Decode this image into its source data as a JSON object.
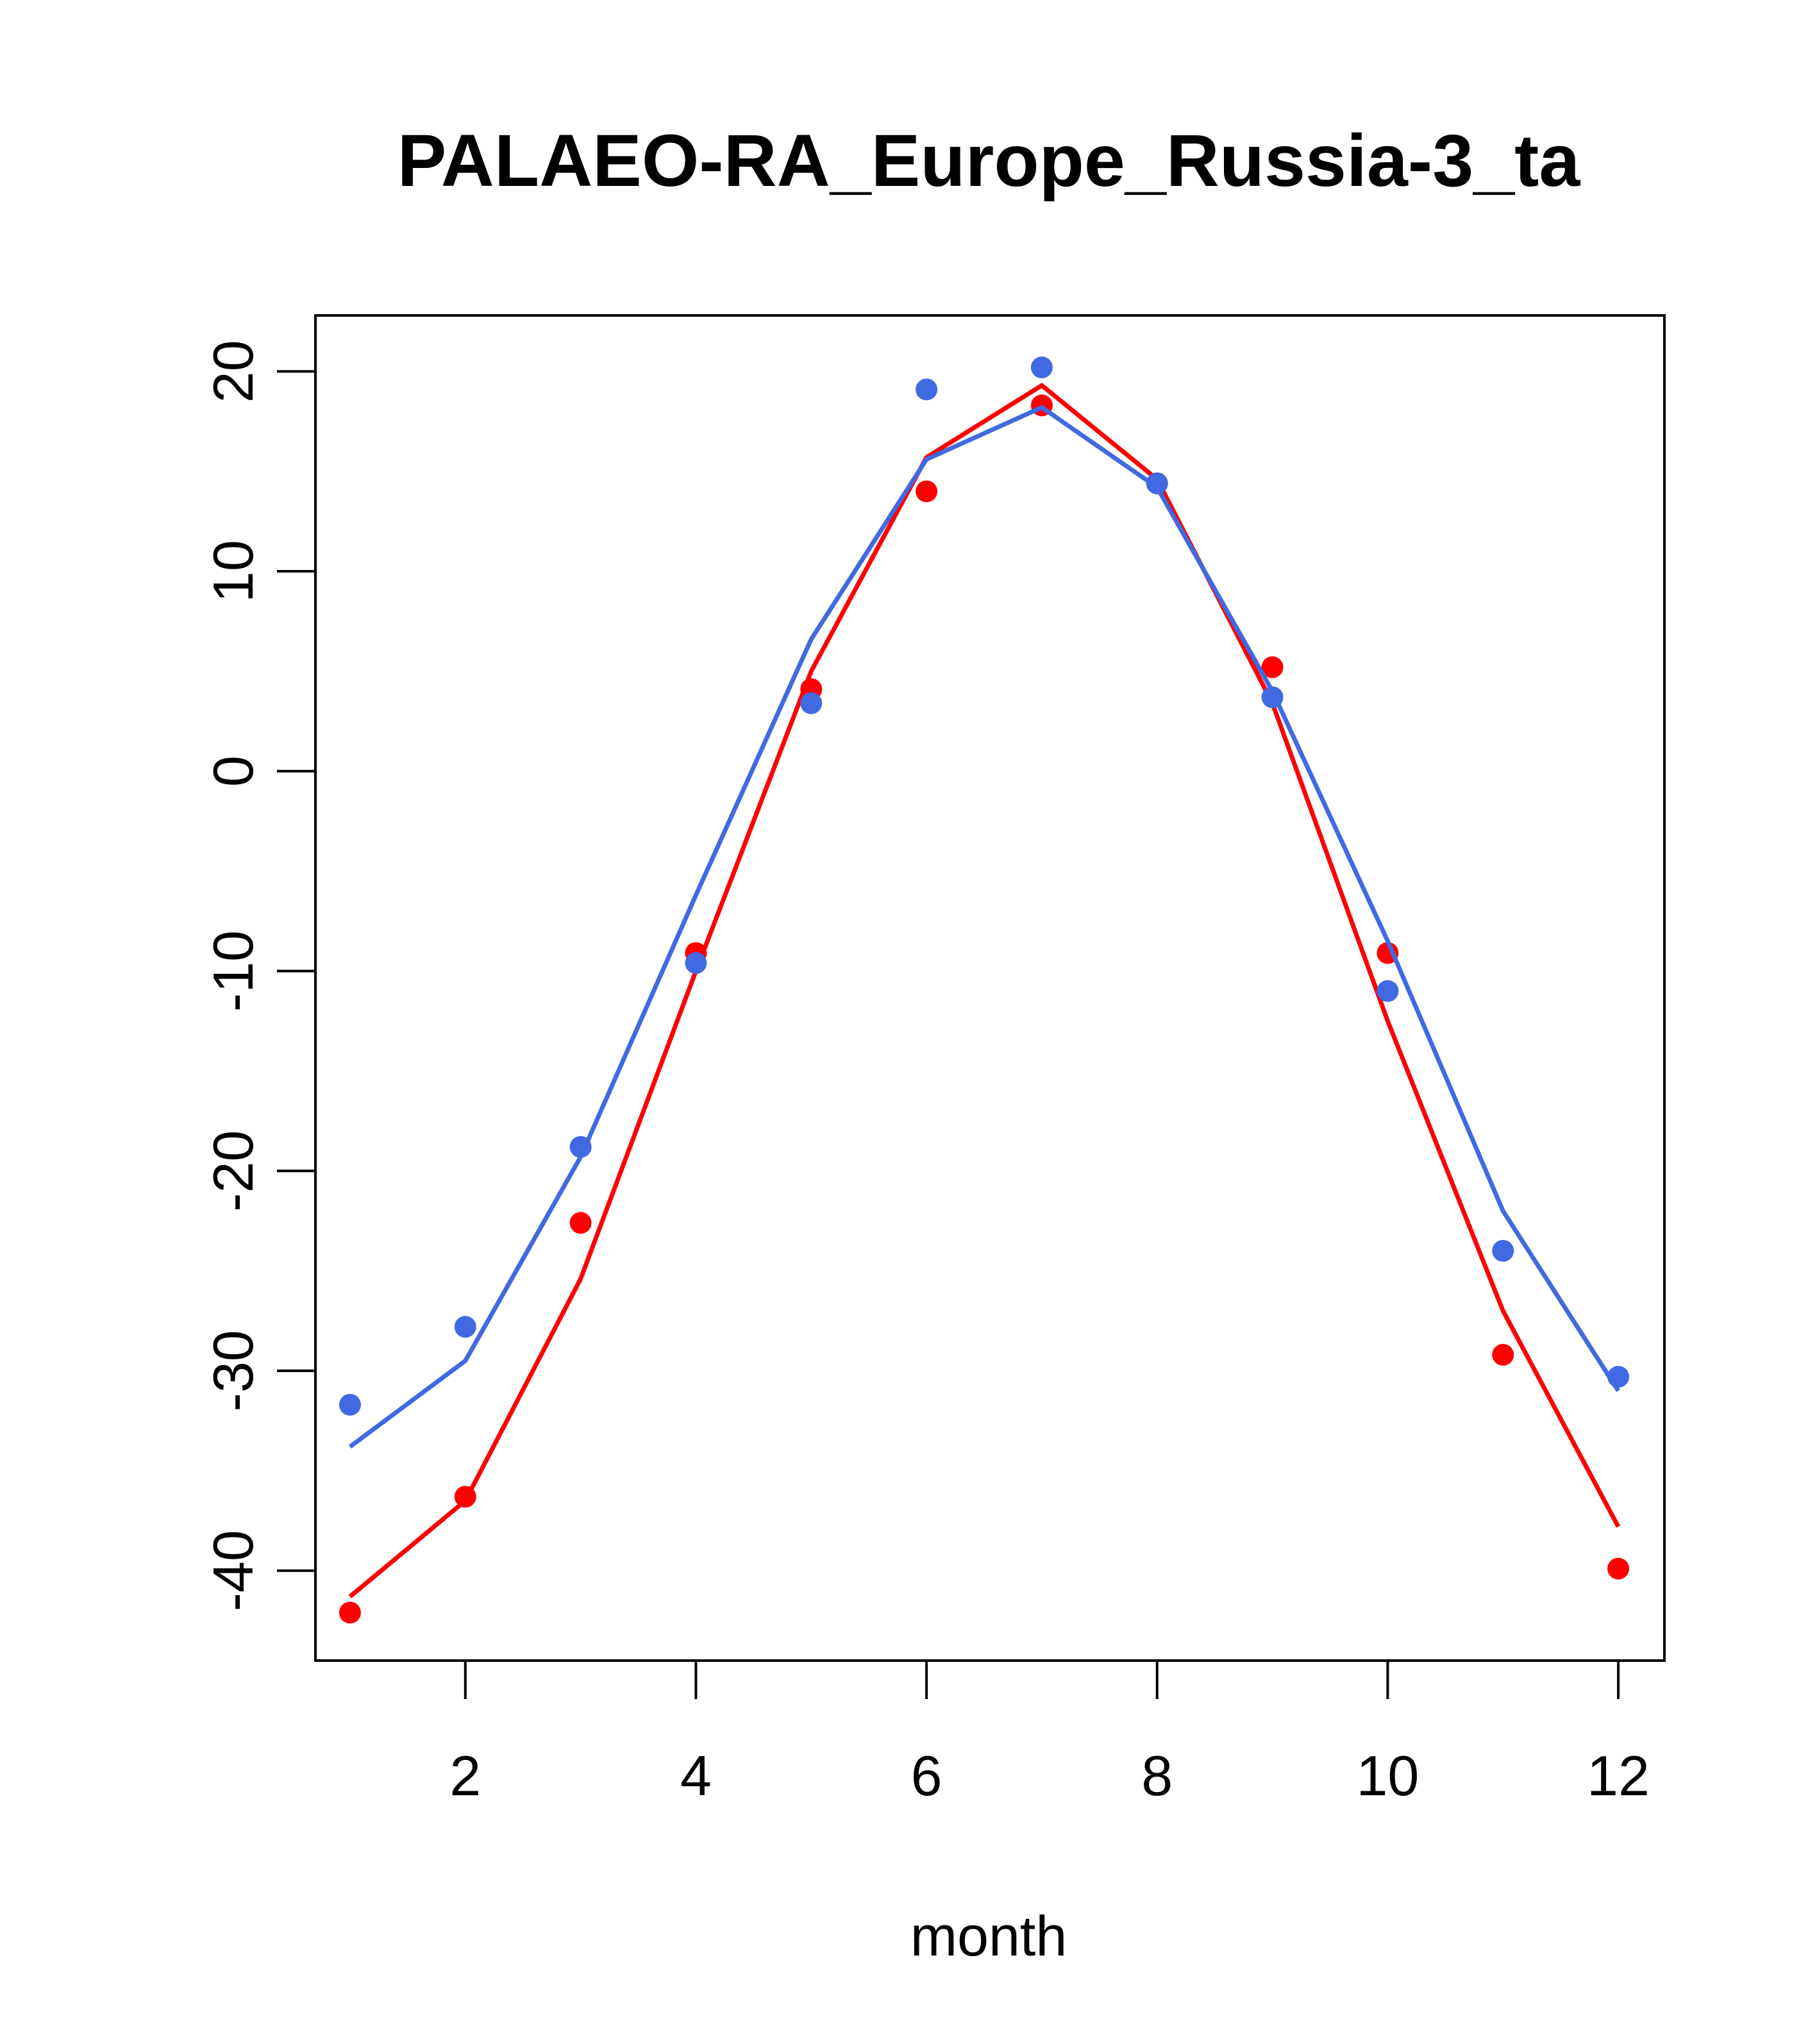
{
  "chart_data": {
    "type": "line",
    "title": "PALAEO-RA_Europe_Russia-3_ta",
    "xlabel": "month",
    "ylabel": "",
    "xlim": [
      0.7,
      12.4
    ],
    "ylim": [
      -44.5,
      22.8
    ],
    "x_ticks": [
      2,
      4,
      6,
      8,
      10,
      12
    ],
    "y_ticks": [
      -40,
      -30,
      -20,
      -10,
      0,
      10,
      20
    ],
    "grid": false,
    "legend": "none",
    "x": [
      1,
      2,
      3,
      4,
      5,
      6,
      7,
      8,
      9,
      10,
      11,
      12
    ],
    "series": [
      {
        "color": "#ff0000",
        "points": [
          -42.1,
          -36.3,
          -22.6,
          -9.1,
          4.1,
          14.0,
          18.3,
          14.4,
          5.2,
          -9.1,
          -29.2,
          -39.9
        ],
        "line": [
          -41.3,
          -36.5,
          -25.4,
          -10.0,
          5.0,
          15.7,
          19.3,
          14.6,
          3.4,
          -12.5,
          -27.0,
          -37.8
        ]
      },
      {
        "color": "#4169e1",
        "points": [
          -31.7,
          -27.8,
          -18.8,
          -9.6,
          3.4,
          19.1,
          20.2,
          14.4,
          3.7,
          -11.0,
          -24.0,
          -30.3
        ],
        "line": [
          -33.8,
          -29.5,
          -19.3,
          -6.2,
          6.6,
          15.6,
          18.2,
          14.2,
          4.0,
          -8.5,
          -22.0,
          -31.0
        ]
      }
    ]
  }
}
